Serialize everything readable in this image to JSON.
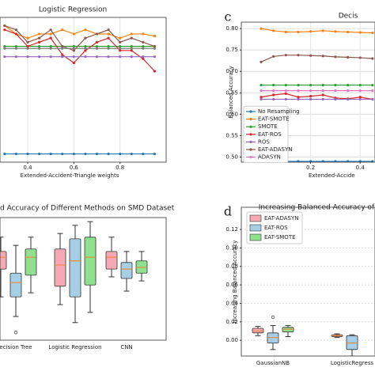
{
  "chart_data": [
    {
      "type": "line",
      "title": "Logistic Regression",
      "xlabel": "Extended-Accident-Triangle weights",
      "x": [
        0.3,
        0.35,
        0.4,
        0.45,
        0.5,
        0.55,
        0.6,
        0.65,
        0.7,
        0.75,
        0.8,
        0.85,
        0.9,
        0.95
      ],
      "xlim": [
        0.28,
        1.0
      ],
      "xticks": [
        0.4,
        0.6,
        0.8
      ],
      "ylim": [
        0.47,
        0.82
      ],
      "grid": true,
      "series": [
        {
          "color": "#1f77b4",
          "values": [
            0.49,
            0.49,
            0.49,
            0.49,
            0.49,
            0.49,
            0.49,
            0.49,
            0.49,
            0.49,
            0.49,
            0.49,
            0.49,
            0.49
          ]
        },
        {
          "color": "#ff7f0e",
          "values": [
            0.8,
            0.78,
            0.77,
            0.78,
            0.78,
            0.79,
            0.78,
            0.79,
            0.78,
            0.78,
            0.77,
            0.78,
            0.78,
            0.775
          ]
        },
        {
          "color": "#2ca02c",
          "values": [
            0.75,
            0.75,
            0.75,
            0.75,
            0.75,
            0.75,
            0.75,
            0.75,
            0.75,
            0.75,
            0.75,
            0.75,
            0.75,
            0.75
          ]
        },
        {
          "color": "#d62728",
          "values": [
            0.79,
            0.78,
            0.75,
            0.76,
            0.77,
            0.73,
            0.71,
            0.74,
            0.76,
            0.77,
            0.74,
            0.74,
            0.72,
            0.69
          ]
        },
        {
          "color": "#9467bd",
          "values": [
            0.725,
            0.725,
            0.725,
            0.725,
            0.725,
            0.725,
            0.725,
            0.725,
            0.725,
            0.725,
            0.725,
            0.725,
            0.725,
            0.725
          ]
        },
        {
          "color": "#8c564b",
          "values": [
            0.8,
            0.79,
            0.76,
            0.77,
            0.79,
            0.75,
            0.74,
            0.77,
            0.78,
            0.79,
            0.76,
            0.77,
            0.76,
            0.75
          ]
        },
        {
          "color": "#7f7f7f",
          "values": [
            0.745,
            0.745,
            0.745,
            0.745,
            0.745,
            0.745,
            0.745,
            0.745,
            0.745,
            0.745,
            0.745,
            0.745,
            0.745,
            0.745
          ]
        }
      ]
    },
    {
      "type": "line",
      "label": "c",
      "title": "Decis",
      "xlabel": "Extended-Accide",
      "ylabel": "Balanced Accuracy",
      "x": [
        0,
        0.05,
        0.1,
        0.15,
        0.2,
        0.25,
        0.3,
        0.35,
        0.4,
        0.45
      ],
      "xlim": [
        -0.08,
        0.46
      ],
      "xticks": [
        0.2,
        0.4
      ],
      "ylim": [
        0.488,
        0.815
      ],
      "yticks": [
        {
          "value": 0.5,
          "label": "0.50"
        },
        {
          "value": 0.55,
          "label": "0.55"
        },
        {
          "value": 0.6,
          "label": "0.60"
        },
        {
          "value": 0.65,
          "label": "0.65"
        },
        {
          "value": 0.7,
          "label": "0.70"
        },
        {
          "value": 0.75,
          "label": "0.75"
        },
        {
          "value": 0.8,
          "label": "0.80"
        }
      ],
      "grid": true,
      "legend": "lower-left",
      "series": [
        {
          "name": "No Resampling",
          "color": "#1f77b4",
          "values": [
            0.49,
            0.49,
            0.49,
            0.49,
            0.49,
            0.49,
            0.49,
            0.49,
            0.49,
            0.49
          ]
        },
        {
          "name": "EAT-SMOTE",
          "color": "#ff7f0e",
          "values": [
            0.8,
            0.795,
            0.792,
            0.792,
            0.793,
            0.795,
            0.793,
            0.792,
            0.791,
            0.79
          ]
        },
        {
          "name": "SMOTE",
          "color": "#2ca02c",
          "values": [
            0.668,
            0.668,
            0.668,
            0.668,
            0.668,
            0.668,
            0.668,
            0.668,
            0.668,
            0.668
          ]
        },
        {
          "name": "EAT-ROS",
          "color": "#d62728",
          "values": [
            0.64,
            0.645,
            0.648,
            0.64,
            0.642,
            0.645,
            0.638,
            0.636,
            0.64,
            0.635
          ]
        },
        {
          "name": "ROS",
          "color": "#9467bd",
          "values": [
            0.635,
            0.635,
            0.635,
            0.635,
            0.635,
            0.635,
            0.635,
            0.635,
            0.635,
            0.635
          ]
        },
        {
          "name": "EAT-ADASYN",
          "color": "#8c564b",
          "values": [
            0.722,
            0.735,
            0.738,
            0.738,
            0.737,
            0.736,
            0.734,
            0.733,
            0.732,
            0.73
          ]
        },
        {
          "name": "ADASYN",
          "color": "#e377c2",
          "values": [
            0.655,
            0.655,
            0.655,
            0.655,
            0.655,
            0.655,
            0.655,
            0.655,
            0.655,
            0.655
          ]
        }
      ]
    },
    {
      "type": "box",
      "title": "d Accuracy of Different Methods on SMD Dataset",
      "categories": [
        "ecision Tree",
        "Logistic Regression",
        "CNN"
      ],
      "ylim": [
        0.6,
        0.9
      ],
      "grid": true,
      "series": [
        {
          "color": "#f4a9b4",
          "boxes": [
            {
              "whislo": 0.706,
              "q1": 0.774,
              "med": 0.803,
              "q3": 0.817,
              "whishi": 0.852
            },
            {
              "whislo": 0.687,
              "q1": 0.732,
              "med": 0.784,
              "q3": 0.823,
              "whishi": 0.861
            },
            {
              "whislo": 0.755,
              "q1": 0.774,
              "med": 0.803,
              "q3": 0.817,
              "whishi": 0.852
            }
          ]
        },
        {
          "color": "#a6cfe6",
          "boxes": [
            {
              "whislo": 0.658,
              "q1": 0.706,
              "med": 0.741,
              "q3": 0.764,
              "whishi": 0.832,
              "fliers": [
                0.619
              ]
            },
            {
              "whislo": 0.643,
              "q1": 0.706,
              "med": 0.794,
              "q3": 0.848,
              "whishi": 0.881
            },
            {
              "whislo": 0.72,
              "q1": 0.751,
              "med": 0.774,
              "q3": 0.79,
              "whishi": 0.817
            }
          ]
        },
        {
          "color": "#8fe08f",
          "boxes": [
            {
              "whislo": 0.716,
              "q1": 0.759,
              "med": 0.803,
              "q3": 0.823,
              "whishi": 0.852
            },
            {
              "whislo": 0.668,
              "q1": 0.735,
              "med": 0.803,
              "q3": 0.852,
              "whishi": 0.89
            },
            {
              "whislo": 0.745,
              "q1": 0.764,
              "med": 0.778,
              "q3": 0.794,
              "whishi": 0.817
            }
          ]
        }
      ]
    },
    {
      "type": "box",
      "label": "d",
      "title": "Increasing Balanced Accuracy of",
      "ylabel": "Increasing Balanced Accuracy",
      "categories": [
        "GaussianNB",
        "LogisticRegress"
      ],
      "ylim": [
        -0.017,
        0.144
      ],
      "yticks": [
        {
          "value": 0,
          "label": "0.00"
        },
        {
          "value": 0.02,
          "label": "0.02"
        },
        {
          "value": 0.04,
          "label": "0.04"
        },
        {
          "value": 0.06,
          "label": "0.06"
        },
        {
          "value": 0.08,
          "label": "0.08"
        },
        {
          "value": 0.1,
          "label": "0.10"
        },
        {
          "value": 0.12,
          "label": "0.12"
        }
      ],
      "grid": true,
      "legend": "upper-left",
      "series": [
        {
          "name": "EAT-ADASYN",
          "color": "#f4a9b4",
          "boxes": [
            {
              "whislo": 0.005,
              "q1": 0.008,
              "med": 0.01,
              "q3": 0.013,
              "whishi": 0.015
            },
            {
              "whislo": 0.003,
              "q1": 0.004,
              "med": 0.005,
              "q3": 0.006,
              "whishi": 0.007
            }
          ]
        },
        {
          "name": "EAT-ROS",
          "color": "#a6cfe6",
          "boxes": [
            {
              "whislo": -0.01,
              "q1": -0.003,
              "med": 0.003,
              "q3": 0.008,
              "whishi": 0.016,
              "fliers": [
                0.025
              ]
            },
            {
              "whislo": -0.017,
              "q1": -0.01,
              "med": -0.003,
              "q3": 0.005,
              "whishi": 0.006
            }
          ]
        },
        {
          "name": "EAT-SMOTE",
          "color": "#8fe08f",
          "boxes": [
            {
              "whislo": 0.004,
              "q1": 0.009,
              "med": 0.012,
              "q3": 0.014,
              "whishi": 0.016
            },
            null
          ]
        }
      ]
    }
  ]
}
